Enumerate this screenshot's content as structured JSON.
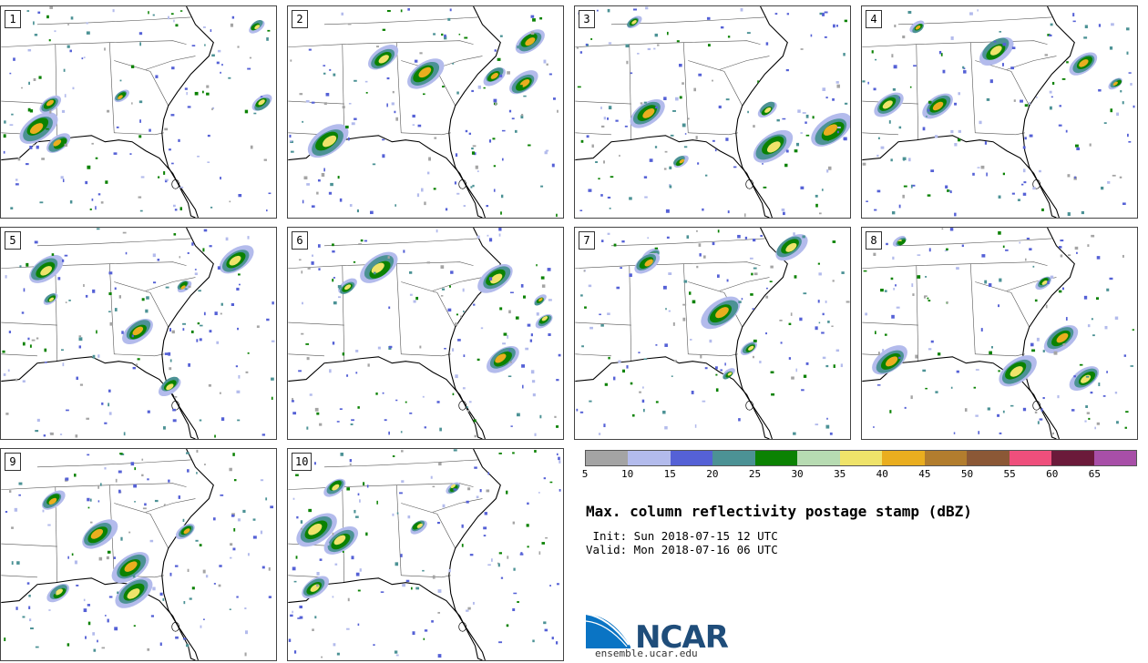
{
  "panels": [
    {
      "label": "1"
    },
    {
      "label": "2"
    },
    {
      "label": "3"
    },
    {
      "label": "4"
    },
    {
      "label": "5"
    },
    {
      "label": "6"
    },
    {
      "label": "7"
    },
    {
      "label": "8"
    },
    {
      "label": "9"
    },
    {
      "label": "10"
    }
  ],
  "colorbar": {
    "colors": [
      "#a4a4a4",
      "#b3bbec",
      "#5561d6",
      "#4c9295",
      "#0b8203",
      "#b7dbb2",
      "#efe36a",
      "#eaae1f",
      "#b27d2e",
      "#8b5836",
      "#ef4f7c",
      "#6b1a3a",
      "#a84fa8"
    ],
    "ticks": [
      "5",
      "10",
      "15",
      "20",
      "25",
      "30",
      "35",
      "40",
      "45",
      "50",
      "55",
      "60",
      "65"
    ]
  },
  "title": "Max. column reflectivity postage stamp (dBZ)",
  "init": " Init: Sun 2018-07-15 12 UTC",
  "valid": "Valid: Mon 2018-07-16 06 UTC",
  "logo": {
    "text": "NCAR",
    "url": "ensemble.ucar.edu"
  }
}
